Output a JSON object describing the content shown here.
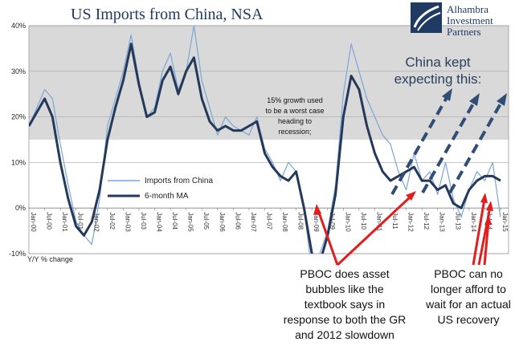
{
  "chart_data": {
    "type": "line",
    "title": "US Imports from China, NSA",
    "ylabel": "Y/Y % change",
    "ylim": [
      -10,
      40
    ],
    "yticks": [
      "-10%",
      "0%",
      "10%",
      "20%",
      "30%",
      "40%"
    ],
    "x_tick_labels": [
      "Jan-00",
      "Jul-00",
      "Jan-01",
      "Jul-01",
      "Jan-02",
      "Jul-02",
      "Jan-03",
      "Jul-03",
      "Jan-04",
      "Jul-04",
      "Jan-05",
      "Jul-05",
      "Jan-06",
      "Jul-06",
      "Jan-07",
      "Jul-07",
      "Jan-08",
      "Jul-08",
      "Jan-09",
      "Jul-09",
      "Jan-10",
      "Jul-10",
      "Jan-11",
      "Jul-11",
      "Jan-12",
      "Jul-12",
      "Jan-13",
      "Jul-13",
      "Jan-14",
      "Jul-14",
      "Jan-15"
    ],
    "shaded_band": [
      15,
      40
    ],
    "series": [
      {
        "name": "Imports from China",
        "color": "#7aa6d6",
        "x": [
          "2000-01",
          "2000-04",
          "2000-07",
          "2000-10",
          "2001-01",
          "2001-04",
          "2001-07",
          "2001-10",
          "2002-01",
          "2002-04",
          "2002-07",
          "2002-10",
          "2003-01",
          "2003-04",
          "2003-07",
          "2003-10",
          "2004-01",
          "2004-04",
          "2004-07",
          "2004-10",
          "2005-01",
          "2005-04",
          "2005-07",
          "2005-10",
          "2006-01",
          "2006-04",
          "2006-07",
          "2006-10",
          "2007-01",
          "2007-04",
          "2007-07",
          "2007-10",
          "2008-01",
          "2008-04",
          "2008-07",
          "2008-10",
          "2009-01",
          "2009-04",
          "2009-07",
          "2009-10",
          "2010-01",
          "2010-04",
          "2010-07",
          "2010-10",
          "2011-01",
          "2011-04",
          "2011-07",
          "2011-10",
          "2012-01",
          "2012-04",
          "2012-07",
          "2012-10",
          "2013-01",
          "2013-04",
          "2013-07",
          "2013-10",
          "2014-01",
          "2014-04",
          "2014-07",
          "2014-10",
          "2015-01"
        ],
        "values": [
          18,
          22,
          26,
          24,
          14,
          5,
          -3,
          -6,
          -8,
          2,
          18,
          24,
          30,
          38,
          28,
          20,
          22,
          30,
          34,
          26,
          30,
          40,
          28,
          22,
          16,
          20,
          18,
          17,
          16,
          20,
          13,
          10,
          6,
          10,
          8,
          0,
          -14,
          -10,
          -5,
          5,
          25,
          36,
          30,
          24,
          20,
          16,
          14,
          8,
          4,
          12,
          6,
          8,
          3,
          10,
          2,
          -2,
          4,
          8,
          6,
          10,
          -2
        ]
      },
      {
        "name": "6-month MA",
        "color": "#24395a",
        "x": [
          "2000-01",
          "2000-04",
          "2000-07",
          "2000-10",
          "2001-01",
          "2001-04",
          "2001-07",
          "2001-10",
          "2002-01",
          "2002-04",
          "2002-07",
          "2002-10",
          "2003-01",
          "2003-04",
          "2003-07",
          "2003-10",
          "2004-01",
          "2004-04",
          "2004-07",
          "2004-10",
          "2005-01",
          "2005-04",
          "2005-07",
          "2005-10",
          "2006-01",
          "2006-04",
          "2006-07",
          "2006-10",
          "2007-01",
          "2007-04",
          "2007-07",
          "2007-10",
          "2008-01",
          "2008-04",
          "2008-07",
          "2008-10",
          "2009-01",
          "2009-04",
          "2009-07",
          "2009-10",
          "2010-01",
          "2010-04",
          "2010-07",
          "2010-10",
          "2011-01",
          "2011-04",
          "2011-07",
          "2011-10",
          "2012-01",
          "2012-04",
          "2012-07",
          "2012-10",
          "2013-01",
          "2013-04",
          "2013-07",
          "2013-10",
          "2014-01",
          "2014-04",
          "2014-07",
          "2014-10",
          "2015-01"
        ],
        "values": [
          18,
          21,
          24,
          20,
          10,
          2,
          -4,
          -6,
          -3,
          4,
          15,
          22,
          28,
          36,
          27,
          20,
          21,
          28,
          31,
          25,
          30,
          33,
          24,
          19,
          17,
          18,
          17,
          17,
          18,
          19,
          12,
          9,
          7,
          6,
          8,
          0,
          -10,
          -12,
          -6,
          3,
          20,
          29,
          26,
          18,
          12,
          8,
          6,
          7,
          8,
          9,
          6,
          6,
          4,
          5,
          1,
          0,
          4,
          6,
          7,
          7,
          6
        ]
      }
    ],
    "legend_placement": "center-left",
    "annotations": [
      {
        "text": "15% growth used to be a worst case heading to recession;"
      },
      {
        "text": "China kept expecting this:"
      },
      {
        "text": "PBOC does asset bubbles like the textbook says in response to both the GR and 2012 slowdown"
      },
      {
        "text": "PBOC can no longer afford to wait for an actual US recovery"
      }
    ]
  },
  "texts": {
    "title": "US Imports from China, NSA",
    "ylabel": "Y/Y % change",
    "legend_1": "Imports from China",
    "legend_2": "6-month MA",
    "note_15pct_lines": [
      "15% growth used",
      "to be a worst case",
      "heading to",
      "recession;"
    ],
    "china_expect_lines": [
      "China kept",
      "expecting this:"
    ],
    "pboc1_lines": [
      "PBOC does asset",
      "bubbles like the",
      "textbook says in",
      "response to both the GR",
      "and 2012 slowdown"
    ],
    "pboc2_lines": [
      "PBOC can no",
      "longer afford to",
      "wait for an actual",
      "US recovery"
    ],
    "logo_lines": [
      "Alhambra",
      "Investment",
      "Partners"
    ]
  },
  "colors": {
    "band": "#d9d9d9",
    "thin_line": "#7aa6d6",
    "thick_line": "#24395a",
    "arrow_red": "#e21d1d",
    "dashed_arrow": "#2f4d75"
  }
}
